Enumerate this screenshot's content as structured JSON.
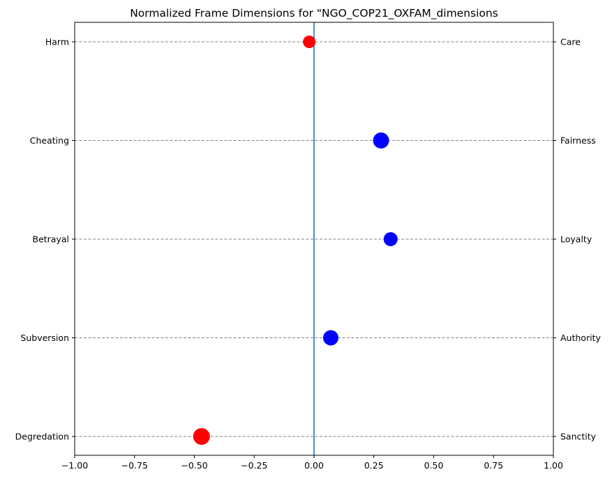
{
  "chart_data": {
    "type": "scatter",
    "title": "Normalized Frame Dimensions for \"NGO_COP21_OXFAM_dimensions",
    "xlim": [
      -1.0,
      1.0
    ],
    "x_ticks": [
      -1.0,
      -0.75,
      -0.5,
      -0.25,
      0.0,
      0.25,
      0.5,
      0.75,
      1.0
    ],
    "x_tick_labels": [
      "−1.00",
      "−0.75",
      "−0.50",
      "−0.25",
      "0.00",
      "0.25",
      "0.50",
      "0.75",
      "1.00"
    ],
    "left_labels": [
      "Harm",
      "Cheating",
      "Betrayal",
      "Subversion",
      "Degredation"
    ],
    "right_labels": [
      "Care",
      "Fairness",
      "Loyalty",
      "Authority",
      "Sanctity"
    ],
    "points": [
      {
        "dimension": "Care",
        "x": -0.02,
        "color": "#ff0000"
      },
      {
        "dimension": "Fairness",
        "x": 0.28,
        "color": "#0000ff"
      },
      {
        "dimension": "Loyalty",
        "x": 0.32,
        "color": "#0000ff"
      },
      {
        "dimension": "Authority",
        "x": 0.07,
        "color": "#0000ff"
      },
      {
        "dimension": "Sanctity",
        "x": -0.47,
        "color": "#ff0000"
      }
    ],
    "zero_line": 0.0,
    "zero_line_color": "#1f77b4",
    "grid": "horizontal dashed"
  }
}
